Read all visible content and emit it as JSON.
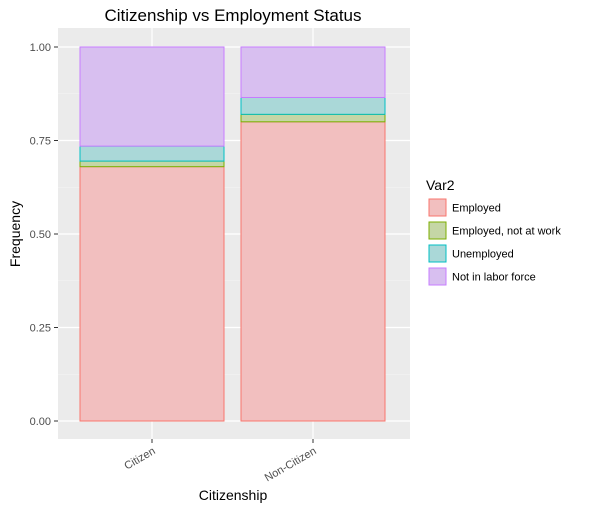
{
  "chart_data": {
    "type": "bar",
    "stacked": true,
    "title": "Citizenship vs Employment Status",
    "xlabel": "Citizenship",
    "ylabel": "Frequency",
    "categories": [
      "Citizen",
      "Non-Citizen"
    ],
    "ylim": [
      0,
      1
    ],
    "yticks": [
      0,
      0.25,
      0.5,
      0.75,
      1
    ],
    "ytick_labels": [
      "0.00",
      "0.25",
      "0.50",
      "0.75",
      "1.00"
    ],
    "grid": true,
    "legend": {
      "title": "Var2",
      "position": "right"
    },
    "series": [
      {
        "name": "Employed",
        "values": [
          0.68,
          0.8
        ],
        "fill": "#f2bfbf",
        "stroke": "#f8766d"
      },
      {
        "name": "Employed, not at work",
        "values": [
          0.015,
          0.02
        ],
        "fill": "#c5d6a6",
        "stroke": "#7cae00"
      },
      {
        "name": "Unemployed",
        "values": [
          0.04,
          0.045
        ],
        "fill": "#aad8d8",
        "stroke": "#00bfc4"
      },
      {
        "name": "Not in labor force",
        "values": [
          0.265,
          0.135
        ],
        "fill": "#d8bff0",
        "stroke": "#c77cff"
      }
    ]
  }
}
